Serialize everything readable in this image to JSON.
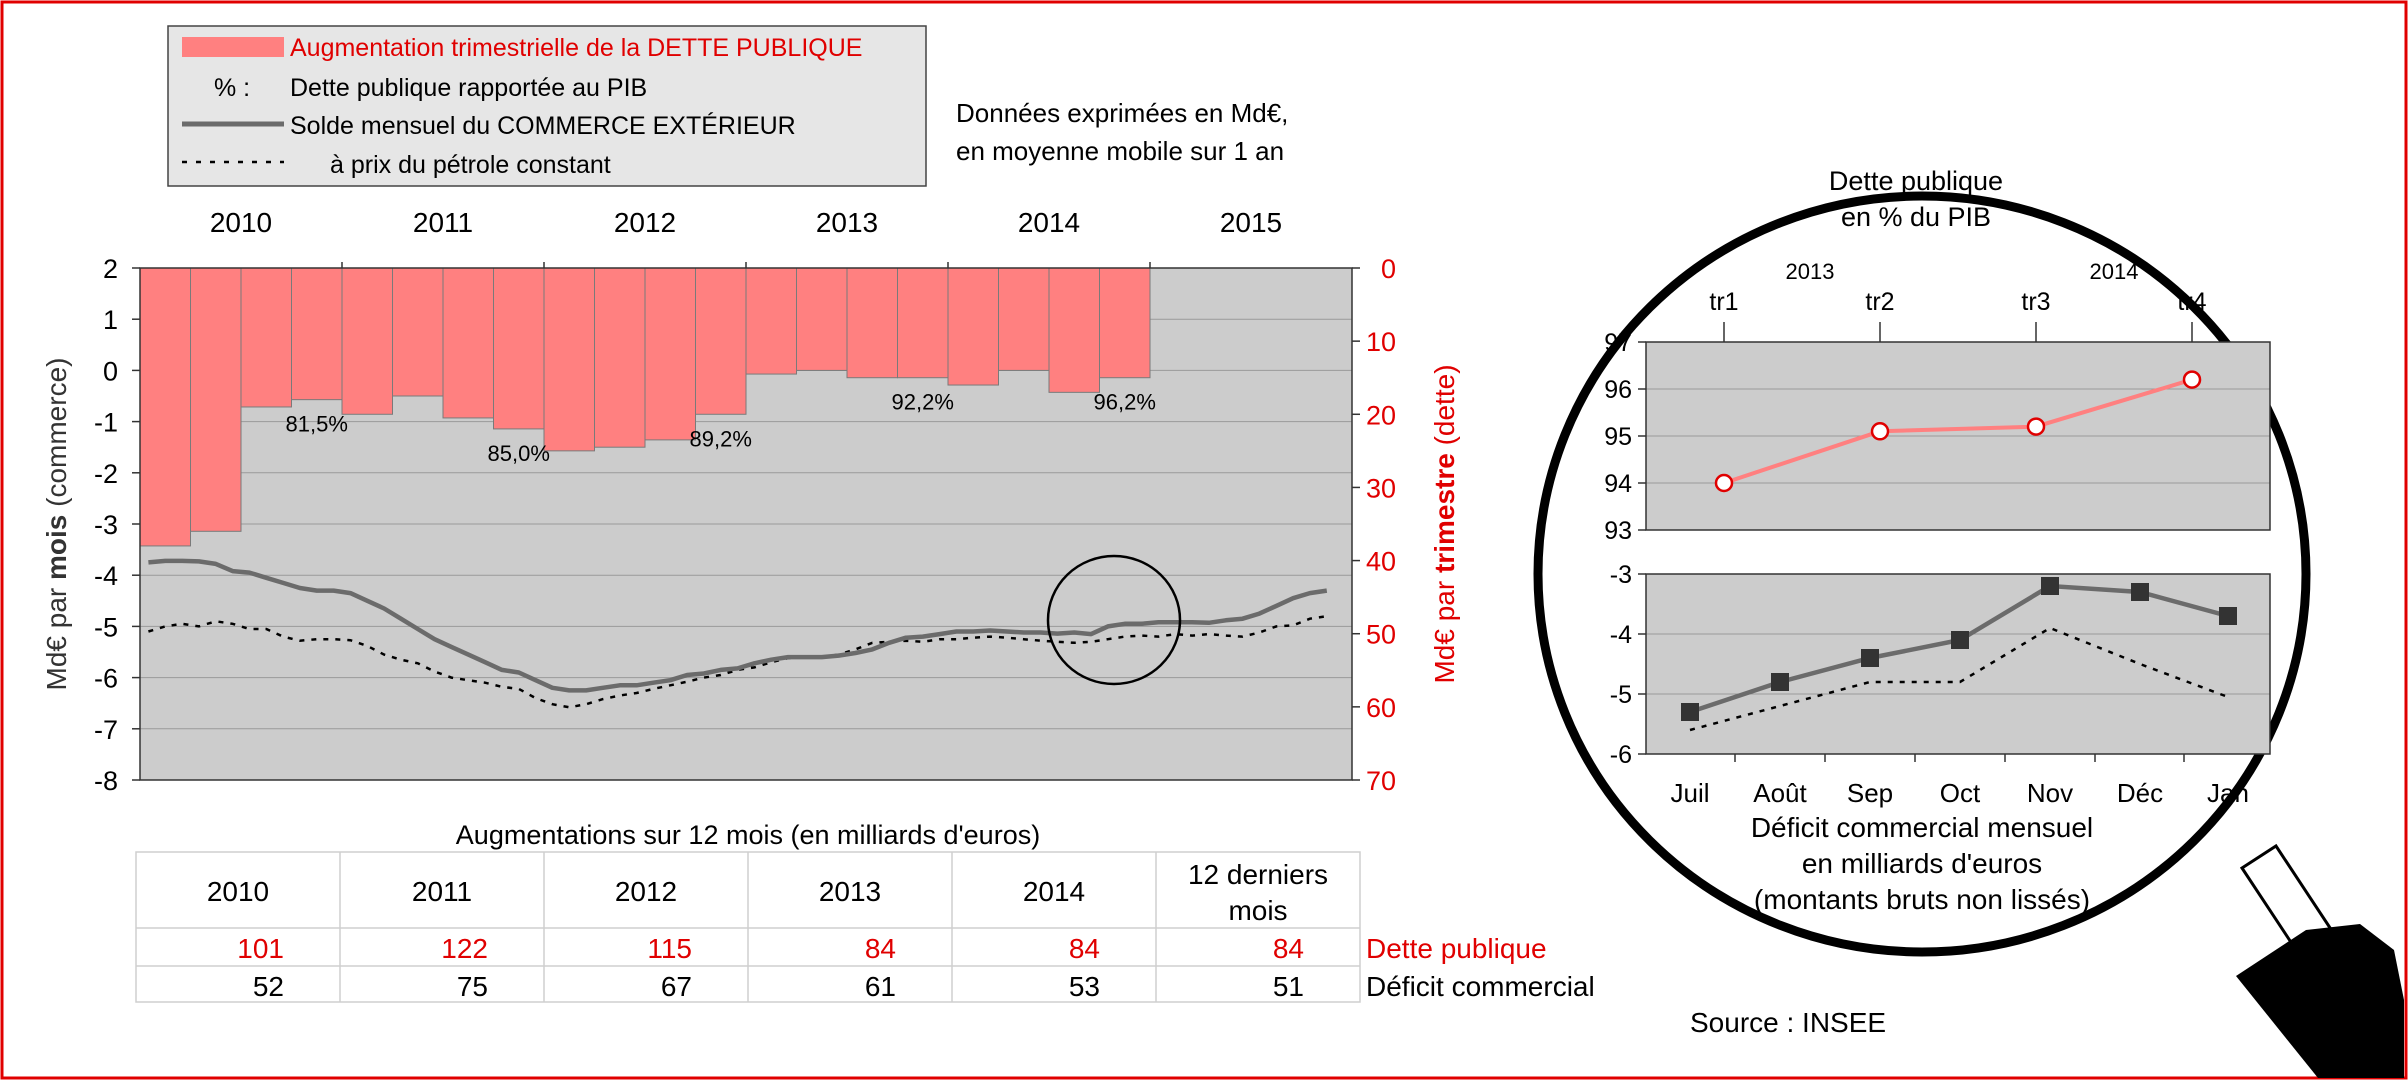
{
  "colors": {
    "debt": "#ff8080",
    "debt_text": "#e00000",
    "trade": "#6b6b6b",
    "plot_bg": "#cccccc",
    "frame": "#e00000"
  },
  "legend": {
    "debt": "Augmentation trimestrielle de la DETTE PUBLIQUE",
    "pct_symbol": "% :",
    "pct": "Dette publique rapportée au PIB",
    "trade": "Solde mensuel du COMMERCE EXTÉRIEUR",
    "oil": "à prix du pétrole constant"
  },
  "note": {
    "line1": "Données exprimées en Md€,",
    "line2": "en moyenne mobile sur 1 an"
  },
  "left_axis_label": {
    "part1": "Md€ par ",
    "bold": "mois",
    "part2": " (commerce)"
  },
  "right_axis_label": {
    "part1": "Md€ par ",
    "bold": "trimestre",
    "part2": " (dette)"
  },
  "chart_data": [
    {
      "type": "bar",
      "years": [
        "2010",
        "2011",
        "2012",
        "2013",
        "2014",
        "2015"
      ],
      "y_left": {
        "min": -8,
        "max": 2,
        "ticks": [
          "2",
          "1",
          "0",
          "-1",
          "-2",
          "-3",
          "-4",
          "-5",
          "-6",
          "-7",
          "-8"
        ]
      },
      "y_right": {
        "min": 0,
        "max": 70,
        "inverted": true,
        "ticks": [
          "0",
          "10",
          "20",
          "30",
          "40",
          "50",
          "60",
          "70"
        ]
      },
      "debt_quarterly": [
        38,
        36,
        19,
        18,
        20,
        17.5,
        20.5,
        22,
        25,
        24.5,
        23.5,
        20,
        14.5,
        14,
        15,
        15,
        16,
        14,
        17,
        15
      ],
      "pct_labels": [
        {
          "quarter": 3,
          "label": "81,5%"
        },
        {
          "quarter": 7,
          "label": "85,0%"
        },
        {
          "quarter": 11,
          "label": "89,2%"
        },
        {
          "quarter": 15,
          "label": "92,2%"
        },
        {
          "quarter": 19,
          "label": "96,2%"
        }
      ],
      "trade_balance_monthly": [
        -3.75,
        -3.72,
        -3.72,
        -3.73,
        -3.78,
        -3.92,
        -3.95,
        -4.05,
        -4.15,
        -4.25,
        -4.3,
        -4.3,
        -4.35,
        -4.5,
        -4.65,
        -4.85,
        -5.05,
        -5.25,
        -5.4,
        -5.55,
        -5.7,
        -5.85,
        -5.9,
        -6.05,
        -6.2,
        -6.25,
        -6.25,
        -6.2,
        -6.15,
        -6.15,
        -6.1,
        -6.05,
        -5.95,
        -5.92,
        -5.85,
        -5.82,
        -5.72,
        -5.65,
        -5.6,
        -5.6,
        -5.6,
        -5.57,
        -5.52,
        -5.45,
        -5.32,
        -5.22,
        -5.2,
        -5.15,
        -5.1,
        -5.1,
        -5.08,
        -5.1,
        -5.12,
        -5.12,
        -5.14,
        -5.12,
        -5.15,
        -5.0,
        -4.95,
        -4.95,
        -4.92,
        -4.92,
        -4.92,
        -4.93,
        -4.88,
        -4.85,
        -4.75,
        -4.6,
        -4.45,
        -4.35,
        -4.3
      ],
      "trade_oil_constant": [
        -5.1,
        -5.0,
        -4.95,
        -5.0,
        -4.9,
        -4.95,
        -5.05,
        -5.05,
        -5.2,
        -5.28,
        -5.25,
        -5.25,
        -5.27,
        -5.38,
        -5.55,
        -5.65,
        -5.72,
        -5.88,
        -6.0,
        -6.05,
        -6.1,
        -6.18,
        -6.22,
        -6.4,
        -6.52,
        -6.58,
        -6.52,
        -6.42,
        -6.35,
        -6.3,
        -6.22,
        -6.15,
        -6.08,
        -6.0,
        -5.95,
        -5.85,
        -5.8,
        -5.7,
        -5.62,
        -5.6,
        -5.6,
        -5.55,
        -5.45,
        -5.32,
        -5.3,
        -5.28,
        -5.3,
        -5.25,
        -5.25,
        -5.22,
        -5.2,
        -5.22,
        -5.25,
        -5.28,
        -5.3,
        -5.32,
        -5.3,
        -5.25,
        -5.2,
        -5.18,
        -5.2,
        -5.15,
        -5.18,
        -5.15,
        -5.18,
        -5.2,
        -5.12,
        -5.0,
        -4.98,
        -4.85,
        -4.8
      ]
    },
    {
      "type": "line",
      "title_line1": "Dette publique",
      "title_line2": "en % du PIB",
      "year_labels": [
        "2013",
        "2014"
      ],
      "categories": [
        "tr1",
        "tr2",
        "tr3",
        "tr4"
      ],
      "values": [
        94.0,
        95.1,
        95.2,
        96.2
      ],
      "y_ticks": [
        "97",
        "96",
        "95",
        "94",
        "93"
      ],
      "ylim": [
        93,
        97
      ]
    },
    {
      "type": "line",
      "categories": [
        "Juil",
        "Août",
        "Sep",
        "Oct",
        "Nov",
        "Déc",
        "Jan"
      ],
      "series": [
        {
          "values": [
            -5.3,
            -4.8,
            -4.4,
            -4.1,
            -3.2,
            -3.3,
            -3.7
          ]
        },
        {
          "style": "dotted",
          "values": [
            -5.6,
            -5.2,
            -4.8,
            -4.8,
            -3.9,
            -4.5,
            -5.05
          ]
        }
      ],
      "y_ticks": [
        "-3",
        "-4",
        "-5",
        "-6"
      ],
      "ylim": [
        -6,
        -3
      ],
      "caption_line1": "Déficit commercial mensuel",
      "caption_line2": "en milliards d'euros",
      "caption_line3": "(montants bruts non lissés)"
    }
  ],
  "table": {
    "title": "Augmentations sur 12 mois (en milliards d'euros)",
    "headers": [
      "2010",
      "2011",
      "2012",
      "2013",
      "2014",
      "12 derniers",
      "mois"
    ],
    "debt": [
      "101",
      "122",
      "115",
      "84",
      "84",
      "84"
    ],
    "trade": [
      "52",
      "75",
      "67",
      "61",
      "53",
      "51"
    ],
    "debt_label": "Dette publique",
    "trade_label": "Déficit commercial"
  },
  "source": "Source : INSEE"
}
